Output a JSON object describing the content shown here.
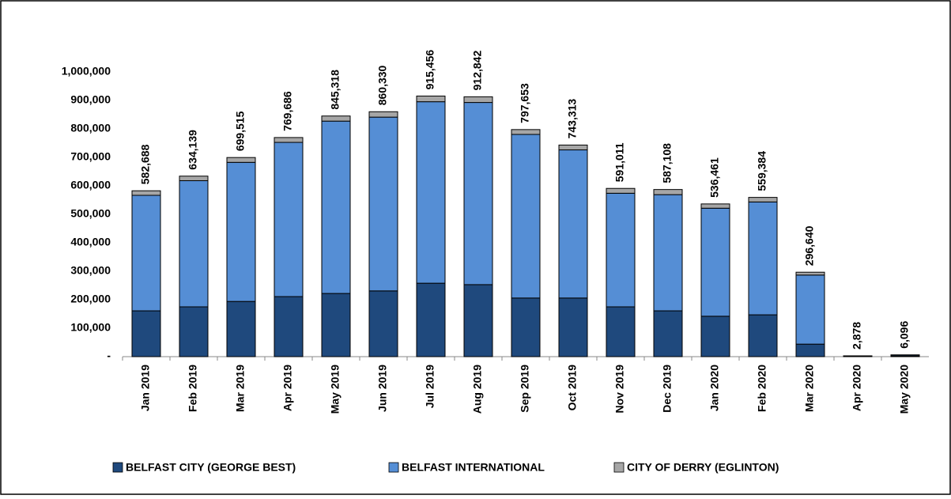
{
  "chart_data": {
    "type": "stacked-bar",
    "categories": [
      "Jan 2019",
      "Feb 2019",
      "Mar 2019",
      "Apr 2019",
      "May 2019",
      "Jun 2019",
      "Jul 2019",
      "Aug 2019",
      "Sep 2019",
      "Oct 2019",
      "Nov 2019",
      "Dec 2019",
      "Jan 2020",
      "Feb 2020",
      "Mar 2020",
      "Apr 2020",
      "May 2020"
    ],
    "series": [
      {
        "name": "BELFAST CITY (GEORGE BEST)",
        "color": "#1f497d",
        "values": [
          161000,
          175000,
          194000,
          211000,
          222000,
          231000,
          258000,
          253000,
          206000,
          206000,
          175000,
          161000,
          142000,
          147000,
          44000,
          1500,
          2500
        ]
      },
      {
        "name": "BELFAST INTERNATIONAL",
        "color": "#558ed5",
        "values": [
          405688,
          443139,
          488515,
          541686,
          605318,
          610330,
          637456,
          639842,
          574653,
          520313,
          399011,
          408108,
          379461,
          396384,
          242640,
          1300,
          3500
        ]
      },
      {
        "name": "CITY OF DERRY (EGLINTON)",
        "color": "#a6a6a6",
        "values": [
          16000,
          16000,
          17000,
          17000,
          18000,
          19000,
          20000,
          20000,
          17000,
          17000,
          17000,
          18000,
          15000,
          16000,
          10000,
          78,
          96
        ]
      }
    ],
    "totals": [
      582688,
      634139,
      699515,
      769686,
      845318,
      860330,
      915456,
      912842,
      797653,
      743313,
      591011,
      587108,
      536461,
      559384,
      296640,
      2878,
      6096
    ],
    "total_labels": [
      "582,688",
      "634,139",
      "699,515",
      "769,686",
      "845,318",
      "860,330",
      "915,456",
      "912,842",
      "797,653",
      "743,313",
      "591,011",
      "587,108",
      "536,461",
      "559,384",
      "296,640",
      "2,878",
      "6,096"
    ],
    "ylim": [
      0,
      1000000
    ],
    "yticks": [
      {
        "value": 0,
        "label": "-"
      },
      {
        "value": 100000,
        "label": "100,000"
      },
      {
        "value": 200000,
        "label": "200,000"
      },
      {
        "value": 300000,
        "label": "300,000"
      },
      {
        "value": 400000,
        "label": "400,000"
      },
      {
        "value": 500000,
        "label": "500,000"
      },
      {
        "value": 600000,
        "label": "600,000"
      },
      {
        "value": 700000,
        "label": "700,000"
      },
      {
        "value": 800000,
        "label": "800,000"
      },
      {
        "value": 900000,
        "label": "900,000"
      },
      {
        "value": 1000000,
        "label": "1,000,000"
      }
    ],
    "grid": false,
    "legend": "bottom"
  }
}
